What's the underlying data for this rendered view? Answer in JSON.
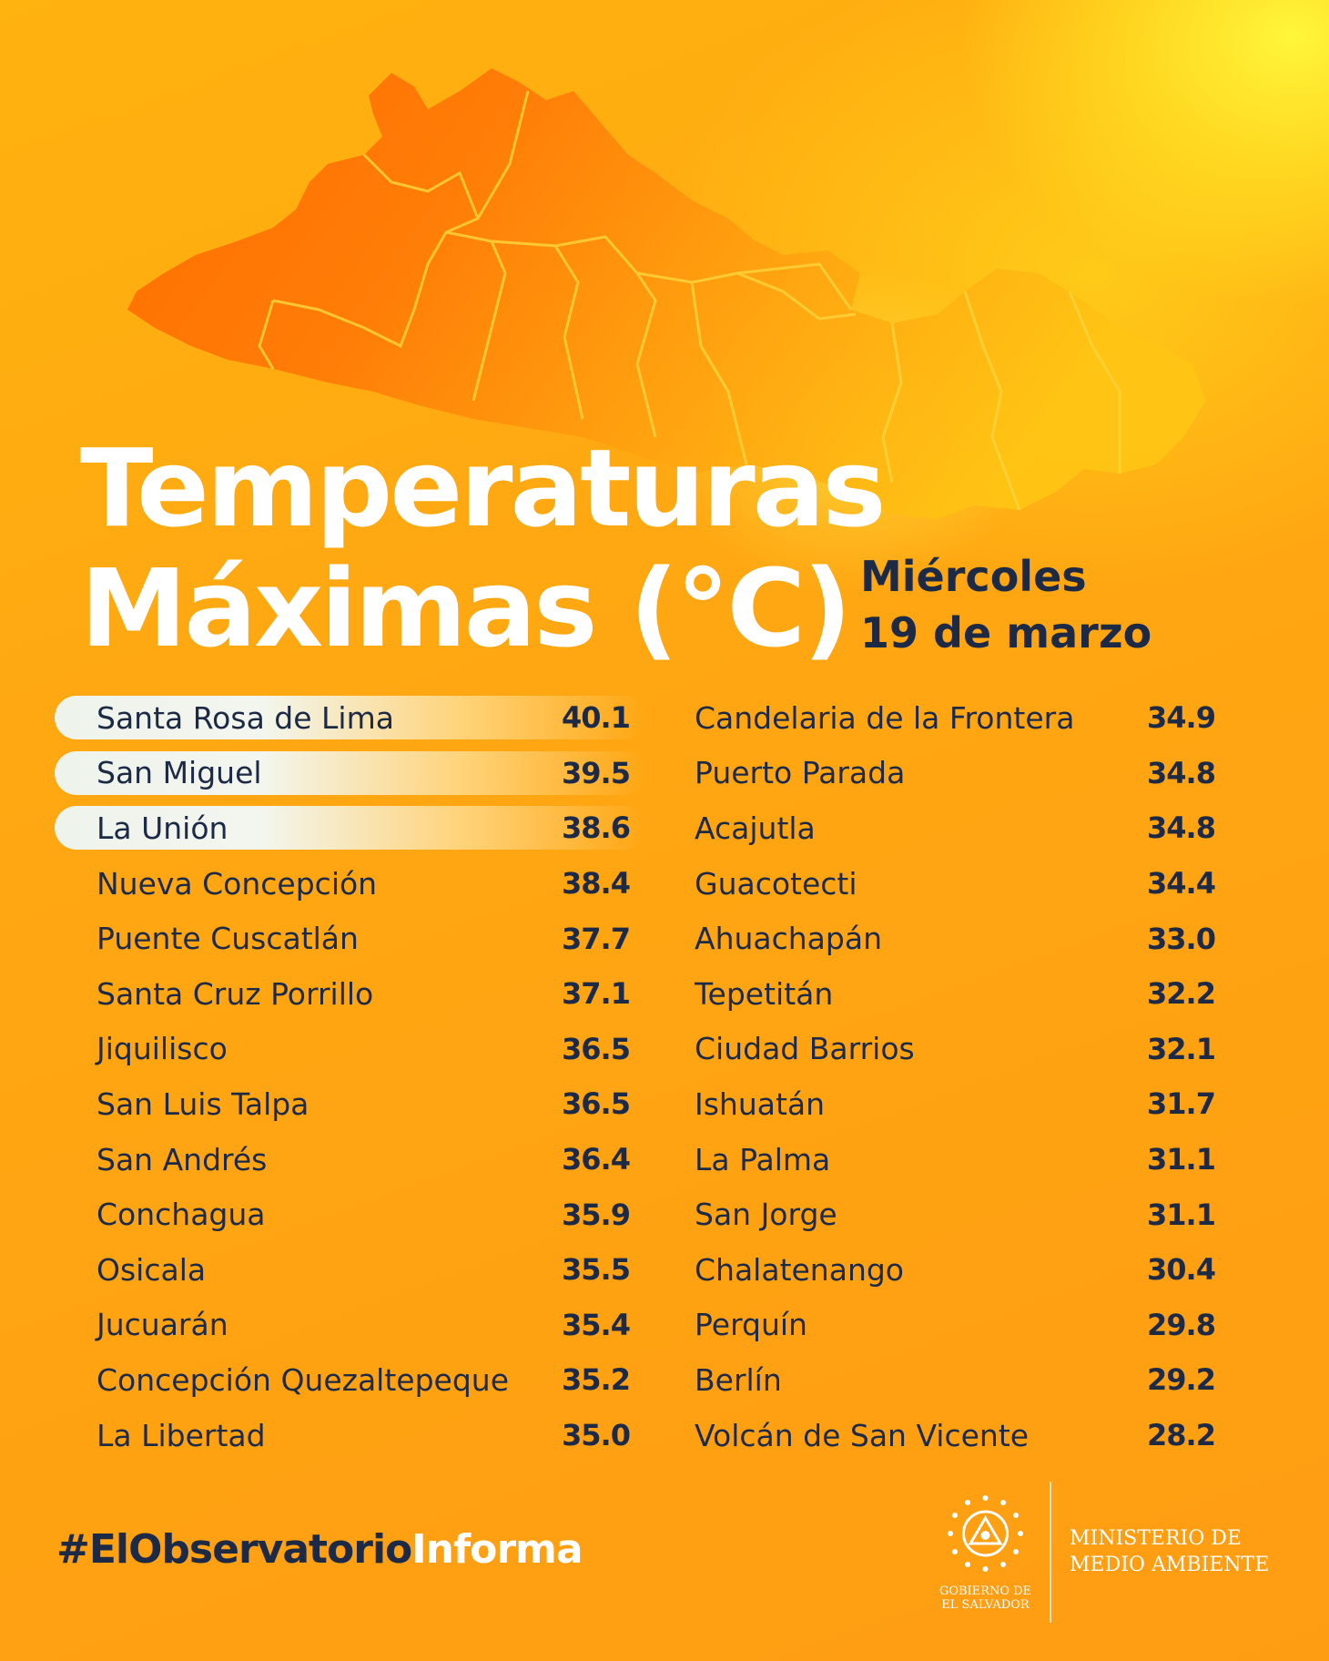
{
  "title": {
    "line1": "Temperaturas",
    "line2": "Máximas (°C)"
  },
  "date": {
    "weekday": "Miércoles",
    "day": "19 de marzo"
  },
  "left_column": [
    {
      "name": "Santa Rosa de Lima",
      "value": "40.1",
      "highlighted": true
    },
    {
      "name": "San Miguel",
      "value": "39.5",
      "highlighted": true
    },
    {
      "name": "La Unión",
      "value": "38.6",
      "highlighted": true
    },
    {
      "name": "Nueva Concepción",
      "value": "38.4"
    },
    {
      "name": "Puente Cuscatlán",
      "value": "37.7"
    },
    {
      "name": "Santa Cruz Porrillo",
      "value": "37.1"
    },
    {
      "name": "Jiquilisco",
      "value": "36.5"
    },
    {
      "name": "San Luis Talpa",
      "value": "36.5"
    },
    {
      "name": "San Andrés",
      "value": "36.4"
    },
    {
      "name": "Conchagua",
      "value": "35.9"
    },
    {
      "name": "Osicala",
      "value": "35.5"
    },
    {
      "name": "Jucuarán",
      "value": "35.4"
    },
    {
      "name": "Concepción Quezaltepeque",
      "value": "35.2"
    },
    {
      "name": "La Libertad",
      "value": "35.0"
    }
  ],
  "right_column": [
    {
      "name": "Candelaria de la Frontera",
      "value": "34.9"
    },
    {
      "name": "Puerto Parada",
      "value": "34.8"
    },
    {
      "name": "Acajutla",
      "value": "34.8"
    },
    {
      "name": "Guacotecti",
      "value": "34.4"
    },
    {
      "name": "Ahuachapán",
      "value": "33.0"
    },
    {
      "name": "Tepetitán",
      "value": "32.2"
    },
    {
      "name": "Ciudad Barrios",
      "value": "32.1"
    },
    {
      "name": "Ishuatán",
      "value": "31.7"
    },
    {
      "name": "La Palma",
      "value": "31.1"
    },
    {
      "name": "San Jorge",
      "value": "31.1"
    },
    {
      "name": "Chalatenango",
      "value": "30.4"
    },
    {
      "name": "Perquín",
      "value": "29.8"
    },
    {
      "name": "Berlín",
      "value": "29.2"
    },
    {
      "name": "Volcán de San Vicente",
      "value": "28.2"
    }
  ],
  "footer": {
    "hashtag_part1": "#ElObservatorio",
    "hashtag_part2": "Informa",
    "gov_line1": "GOBIERNO DE",
    "gov_line2": "EL SALVADOR",
    "ministry_line1": "MINISTERIO DE",
    "ministry_line2": "MEDIO AMBIENTE"
  },
  "colors": {
    "text_dark": "#1c2a45",
    "map_dark": "#ff6a00",
    "map_light": "#ffc414",
    "background": "#ffa812"
  },
  "icons": {
    "map": "el-salvador-map",
    "emblem": "coat-of-arms-icon"
  }
}
